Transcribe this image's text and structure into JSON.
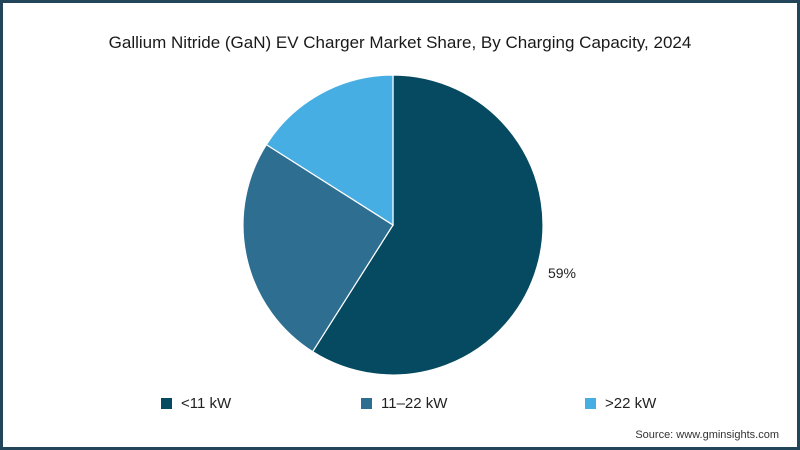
{
  "chart_data": {
    "type": "pie",
    "title": "Gallium Nitride (GaN) EV Charger Market Share, By Charging Capacity, 2024",
    "categories": [
      "<11 kW",
      "11–22 kW",
      ">22 kW"
    ],
    "values": [
      59,
      25,
      16
    ],
    "data_labels": [
      "59%",
      "",
      ""
    ],
    "colors": [
      "#054a60",
      "#2e6f91",
      "#47aee3"
    ],
    "legend_position": "bottom",
    "source": "Source: www.gminsights.com"
  }
}
